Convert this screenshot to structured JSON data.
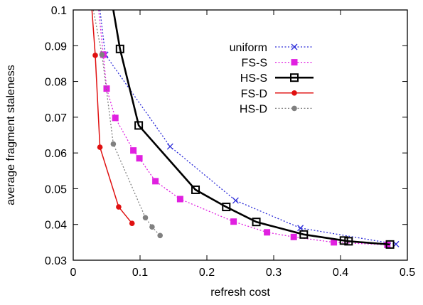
{
  "chart_data": {
    "type": "line",
    "title": "",
    "xlabel": "refresh cost",
    "ylabel": "average fragment staleness",
    "xlim": [
      0,
      0.5
    ],
    "ylim": [
      0.03,
      0.1
    ],
    "xticks": [
      0,
      0.1,
      0.2,
      0.3,
      0.4,
      0.5
    ],
    "xtick_labels": [
      "0",
      "0.1",
      "0.2",
      "0.3",
      "0.4",
      "0.5"
    ],
    "yticks": [
      0.03,
      0.04,
      0.05,
      0.06,
      0.07,
      0.08,
      0.09,
      0.1
    ],
    "ytick_labels": [
      "0.03",
      "0.04",
      "0.05",
      "0.06",
      "0.07",
      "0.08",
      "0.09",
      "0.1"
    ],
    "grid": false,
    "legend": "top-right",
    "series": [
      {
        "name": "uniform",
        "color": "#2a2ad8",
        "line": "dotted",
        "marker": "x",
        "points": [
          [
            0.04,
            0.1
          ],
          [
            0.048,
            0.0875
          ],
          [
            0.145,
            0.0618
          ],
          [
            0.243,
            0.0467
          ],
          [
            0.34,
            0.039
          ],
          [
            0.483,
            0.0345
          ]
        ]
      },
      {
        "name": "FS-S",
        "color": "#e020e0",
        "line": "dotted",
        "marker": "square-filled",
        "points": [
          [
            0.038,
            0.1
          ],
          [
            0.045,
            0.0875
          ],
          [
            0.05,
            0.078
          ],
          [
            0.063,
            0.0698
          ],
          [
            0.09,
            0.0607
          ],
          [
            0.099,
            0.0585
          ],
          [
            0.123,
            0.0521
          ],
          [
            0.16,
            0.0471
          ],
          [
            0.24,
            0.0408
          ],
          [
            0.29,
            0.0378
          ],
          [
            0.33,
            0.0365
          ],
          [
            0.39,
            0.035
          ],
          [
            0.47,
            0.0343
          ]
        ]
      },
      {
        "name": "HS-S",
        "color": "#000000",
        "line": "solid",
        "marker": "square-open",
        "points": [
          [
            0.06,
            0.1
          ],
          [
            0.07,
            0.0891
          ],
          [
            0.098,
            0.0677
          ],
          [
            0.183,
            0.0497
          ],
          [
            0.229,
            0.0449
          ],
          [
            0.274,
            0.0407
          ],
          [
            0.345,
            0.0372
          ],
          [
            0.405,
            0.0355
          ],
          [
            0.412,
            0.0353
          ],
          [
            0.474,
            0.0344
          ]
        ]
      },
      {
        "name": "FS-D",
        "color": "#e01010",
        "line": "solid",
        "marker": "circle-filled",
        "points": [
          [
            0.028,
            0.1
          ],
          [
            0.033,
            0.0873
          ],
          [
            0.04,
            0.0616
          ],
          [
            0.068,
            0.0449
          ],
          [
            0.088,
            0.0403
          ]
        ]
      },
      {
        "name": "HS-D",
        "color": "#808080",
        "line": "dotted",
        "marker": "circle-filled",
        "points": [
          [
            0.03,
            0.1
          ],
          [
            0.043,
            0.0875
          ],
          [
            0.06,
            0.0625
          ],
          [
            0.108,
            0.0419
          ],
          [
            0.118,
            0.0393
          ],
          [
            0.13,
            0.0369
          ]
        ]
      }
    ]
  }
}
